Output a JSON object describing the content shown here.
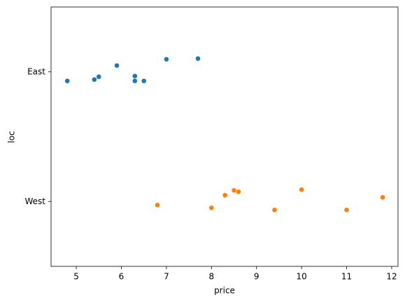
{
  "chart_data": {
    "type": "strip",
    "x_label": "price",
    "y_label": "loc",
    "categories": [
      "East",
      "West"
    ],
    "series": [
      {
        "color": "#1f77b4",
        "values": [
          4.8,
          5.4,
          5.5,
          5.9,
          6.3,
          6.3,
          6.5,
          7.0,
          7.7
        ]
      },
      {
        "color": "#ff7f0e",
        "values": [
          6.8,
          8.0,
          8.3,
          8.5,
          8.6,
          9.4,
          10.0,
          11.0,
          11.8
        ]
      }
    ],
    "xlim": [
      4.44,
      12.14
    ],
    "xticks": [
      5,
      6,
      7,
      8,
      9,
      10,
      11,
      12
    ]
  }
}
